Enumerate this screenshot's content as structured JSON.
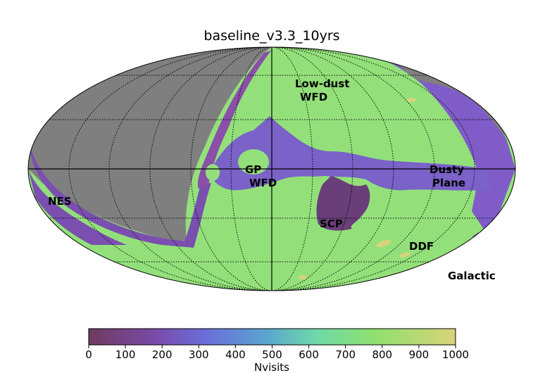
{
  "title": "baseline_v3.3_10yrs",
  "projection_label": "Galactic",
  "regions": {
    "low_dust_line1": "Low-dust",
    "low_dust_line2": "WFD",
    "gp_line1": "GP",
    "gp_line2": "WFD",
    "dusty_line1": "Dusty",
    "dusty_line2": "Plane",
    "nes": "NES",
    "scp": "SCP",
    "ddf": "DDF"
  },
  "colorbar": {
    "label": "Nvisits",
    "min": 0,
    "max": 1000,
    "ticks": [
      "0",
      "100",
      "200",
      "300",
      "400",
      "500",
      "600",
      "700",
      "800",
      "900",
      "1000"
    ],
    "tick_values": [
      0,
      100,
      200,
      300,
      400,
      500,
      600,
      700,
      800,
      900,
      1000
    ],
    "colors": [
      "#6e3b60",
      "#7a4aa8",
      "#6a6fd8",
      "#5aa3d0",
      "#6ed9a8",
      "#8fe06e",
      "#d8d37a"
    ]
  },
  "colors": {
    "outside_footprint": "#7f7f7f",
    "wfd_high": "#93e07a",
    "plane_mid": "#7a62c8",
    "scp_low": "#6a3e78",
    "edge_low": "#8a4fa8"
  }
}
